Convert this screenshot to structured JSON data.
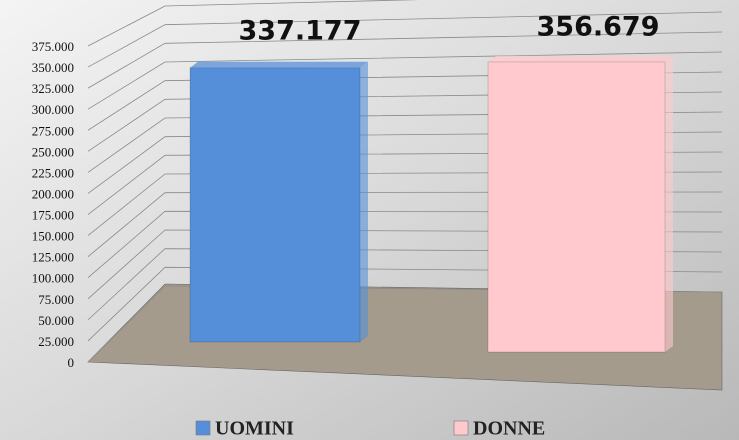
{
  "chart_data": {
    "type": "bar",
    "categories": [
      null
    ],
    "series": [
      {
        "name": "UOMINI",
        "color": "#558fd9",
        "values": [
          337177
        ],
        "value_labels": [
          "337.177"
        ]
      },
      {
        "name": "DONNE",
        "color": "#ffc9cd",
        "values": [
          356679
        ],
        "value_labels": [
          "356.679"
        ]
      }
    ],
    "ylim": [
      0,
      375000
    ],
    "yticks": [
      0,
      {
        "value": 25000,
        "label": "25.000"
      },
      {
        "value": 50000,
        "label": "50.000"
      },
      {
        "value": 75000,
        "label": "75.000"
      },
      {
        "value": 100000,
        "label": "100.000"
      },
      {
        "value": 125000,
        "label": "125.000"
      },
      {
        "value": 150000,
        "label": "150.000"
      },
      {
        "value": 175000,
        "label": "175.000"
      },
      {
        "value": 200000,
        "label": "200.000"
      },
      {
        "value": 225000,
        "label": "225.000"
      },
      {
        "value": 250000,
        "label": "250.000"
      },
      {
        "value": 275000,
        "label": "275.000"
      },
      {
        "value": 300000,
        "label": "300.000"
      },
      {
        "value": 325000,
        "label": "325.000"
      },
      {
        "value": 350000,
        "label": "350.000"
      },
      {
        "value": 375000,
        "label": "375.000"
      }
    ],
    "grid": true,
    "legend": "bottom"
  }
}
